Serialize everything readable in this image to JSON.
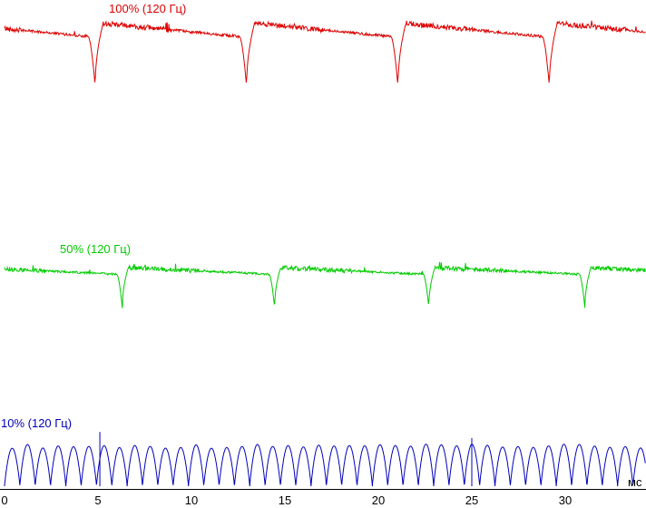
{
  "page": {
    "background": "#ffffff"
  },
  "chart_data": {
    "type": "line",
    "title": "",
    "xlabel": "мс",
    "x_ticks": [
      0,
      5,
      10,
      15,
      20,
      25,
      30
    ],
    "x_range_ms": [
      0,
      34.3
    ],
    "grid": false,
    "legend_position": "inline-labels",
    "axis_color": "#000000",
    "series": [
      {
        "label": "100% (120 Гц)",
        "color": "#dd0000",
        "kind": "pwm-dips",
        "frequency_hz": 120,
        "period_ms": 8.1,
        "dip_times_ms": [
          4.85,
          12.95,
          21.05,
          29.15
        ],
        "dip_fall_ms": 0.38,
        "dip_rise_ms": 0.42,
        "level_after_dip": 0.95,
        "level_before_dip": 0.76,
        "dip_bottom": 0.03,
        "noise": 0.021
      },
      {
        "label": "50% (120 Гц)",
        "color": "#00cc00",
        "kind": "pwm-dips",
        "frequency_hz": 120,
        "period_ms": 8.25,
        "dip_times_ms": [
          6.3,
          14.45,
          22.7,
          31.05
        ],
        "dip_fall_ms": 0.3,
        "dip_rise_ms": 0.32,
        "level_after_dip": 0.92,
        "level_before_dip": 0.78,
        "dip_bottom": 0.05,
        "noise": 0.026
      },
      {
        "label": "10% (120 Гц)",
        "color": "#0000bb",
        "kind": "rectified-sine",
        "frequency_hz": 120,
        "hump_period_ms": 0.82,
        "peak_level": 1.0,
        "trough_level": 0.0,
        "spikes": [
          {
            "t_ms": 5.1,
            "peak_level": 1.33
          },
          {
            "t_ms": 25.0,
            "peak_level": 1.18
          }
        ]
      }
    ]
  }
}
